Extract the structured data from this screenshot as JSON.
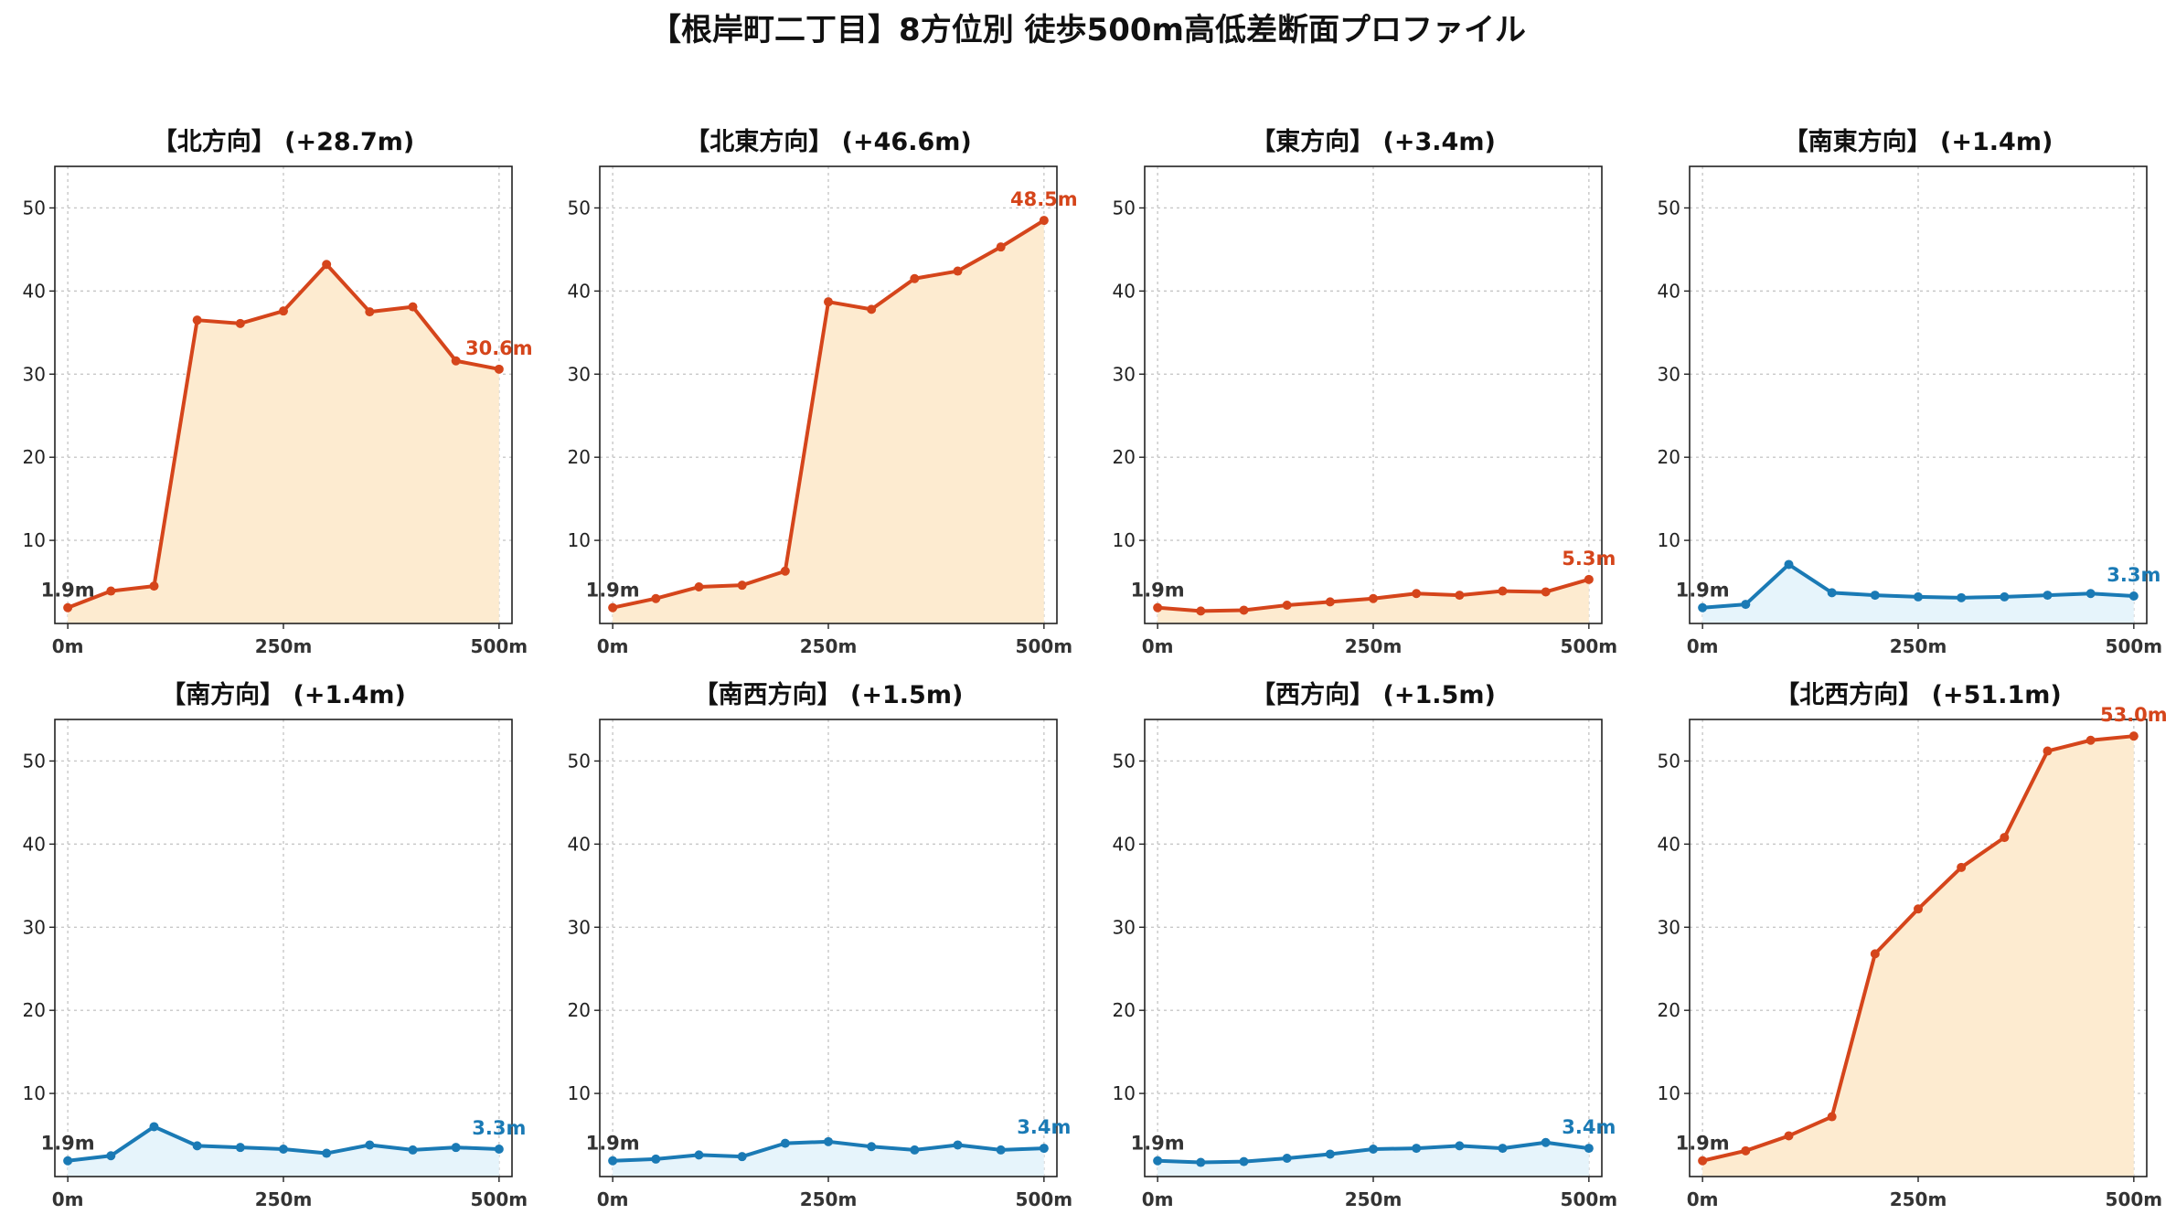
{
  "title": "【根岸町二丁目】8方位別 徒歩500m高低差断面プロファイル",
  "colors": {
    "up_line": "#d5451b",
    "up_fill": "#fdebd0",
    "flat_line": "#1a7ab5",
    "flat_fill": "#e6f4fb"
  },
  "chart_data": [
    {
      "type": "area",
      "title": "【北方向】 (+28.7m)",
      "trend": "up",
      "x": [
        0,
        50,
        100,
        150,
        200,
        250,
        300,
        350,
        400,
        450,
        500
      ],
      "values": [
        1.9,
        3.9,
        4.5,
        36.5,
        36.1,
        37.6,
        43.2,
        37.5,
        38.1,
        31.6,
        30.6
      ],
      "x_tick_labels": [
        "0m",
        "250m",
        "500m"
      ],
      "x_ticks": [
        0,
        250,
        500
      ],
      "y_ticks": [
        10,
        20,
        30,
        40,
        50
      ],
      "ylim": [
        0,
        55
      ],
      "xlim": [
        -15,
        515
      ],
      "start_label": "1.9m",
      "end_label": "30.6m",
      "grid": true
    },
    {
      "type": "area",
      "title": "【北東方向】 (+46.6m)",
      "trend": "up",
      "x": [
        0,
        50,
        100,
        150,
        200,
        250,
        300,
        350,
        400,
        450,
        500
      ],
      "values": [
        1.9,
        3.0,
        4.4,
        4.6,
        6.3,
        38.7,
        37.8,
        41.5,
        42.4,
        45.3,
        48.5
      ],
      "x_tick_labels": [
        "0m",
        "250m",
        "500m"
      ],
      "x_ticks": [
        0,
        250,
        500
      ],
      "y_ticks": [
        10,
        20,
        30,
        40,
        50
      ],
      "ylim": [
        0,
        55
      ],
      "xlim": [
        -15,
        515
      ],
      "start_label": "1.9m",
      "end_label": "48.5m",
      "grid": true
    },
    {
      "type": "area",
      "title": "【東方向】 (+3.4m)",
      "trend": "up",
      "x": [
        0,
        50,
        100,
        150,
        200,
        250,
        300,
        350,
        400,
        450,
        500
      ],
      "values": [
        1.9,
        1.5,
        1.6,
        2.2,
        2.6,
        3.0,
        3.6,
        3.4,
        3.9,
        3.8,
        5.3
      ],
      "x_tick_labels": [
        "0m",
        "250m",
        "500m"
      ],
      "x_ticks": [
        0,
        250,
        500
      ],
      "y_ticks": [
        10,
        20,
        30,
        40,
        50
      ],
      "ylim": [
        0,
        55
      ],
      "xlim": [
        -15,
        515
      ],
      "start_label": "1.9m",
      "end_label": "5.3m",
      "grid": true
    },
    {
      "type": "area",
      "title": "【南東方向】 (+1.4m)",
      "trend": "flat",
      "x": [
        0,
        50,
        100,
        150,
        200,
        250,
        300,
        350,
        400,
        450,
        500
      ],
      "values": [
        1.9,
        2.3,
        7.1,
        3.7,
        3.4,
        3.2,
        3.1,
        3.2,
        3.4,
        3.6,
        3.3
      ],
      "x_tick_labels": [
        "0m",
        "250m",
        "500m"
      ],
      "x_ticks": [
        0,
        250,
        500
      ],
      "y_ticks": [
        10,
        20,
        30,
        40,
        50
      ],
      "ylim": [
        0,
        55
      ],
      "xlim": [
        -15,
        515
      ],
      "start_label": "1.9m",
      "end_label": "3.3m",
      "grid": true
    },
    {
      "type": "area",
      "title": "【南方向】 (+1.4m)",
      "trend": "flat",
      "x": [
        0,
        50,
        100,
        150,
        200,
        250,
        300,
        350,
        400,
        450,
        500
      ],
      "values": [
        1.9,
        2.5,
        6.0,
        3.7,
        3.5,
        3.3,
        2.8,
        3.8,
        3.2,
        3.5,
        3.3
      ],
      "x_tick_labels": [
        "0m",
        "250m",
        "500m"
      ],
      "x_ticks": [
        0,
        250,
        500
      ],
      "y_ticks": [
        10,
        20,
        30,
        40,
        50
      ],
      "ylim": [
        0,
        55
      ],
      "xlim": [
        -15,
        515
      ],
      "start_label": "1.9m",
      "end_label": "3.3m",
      "grid": true
    },
    {
      "type": "area",
      "title": "【南西方向】 (+1.5m)",
      "trend": "flat",
      "x": [
        0,
        50,
        100,
        150,
        200,
        250,
        300,
        350,
        400,
        450,
        500
      ],
      "values": [
        1.9,
        2.1,
        2.6,
        2.4,
        4.0,
        4.2,
        3.6,
        3.2,
        3.8,
        3.2,
        3.4
      ],
      "x_tick_labels": [
        "0m",
        "250m",
        "500m"
      ],
      "x_ticks": [
        0,
        250,
        500
      ],
      "y_ticks": [
        10,
        20,
        30,
        40,
        50
      ],
      "ylim": [
        0,
        55
      ],
      "xlim": [
        -15,
        515
      ],
      "start_label": "1.9m",
      "end_label": "3.4m",
      "grid": true
    },
    {
      "type": "area",
      "title": "【西方向】 (+1.5m)",
      "trend": "flat",
      "x": [
        0,
        50,
        100,
        150,
        200,
        250,
        300,
        350,
        400,
        450,
        500
      ],
      "values": [
        1.9,
        1.7,
        1.8,
        2.2,
        2.7,
        3.3,
        3.4,
        3.7,
        3.4,
        4.1,
        3.4
      ],
      "x_tick_labels": [
        "0m",
        "250m",
        "500m"
      ],
      "x_ticks": [
        0,
        250,
        500
      ],
      "y_ticks": [
        10,
        20,
        30,
        40,
        50
      ],
      "ylim": [
        0,
        55
      ],
      "xlim": [
        -15,
        515
      ],
      "start_label": "1.9m",
      "end_label": "3.4m",
      "grid": true
    },
    {
      "type": "area",
      "title": "【北西方向】 (+51.1m)",
      "trend": "up",
      "x": [
        0,
        50,
        100,
        150,
        200,
        250,
        300,
        350,
        400,
        450,
        500
      ],
      "values": [
        1.9,
        3.1,
        4.9,
        7.2,
        26.8,
        32.2,
        37.2,
        40.8,
        51.2,
        52.5,
        53.0
      ],
      "x_tick_labels": [
        "0m",
        "250m",
        "500m"
      ],
      "x_ticks": [
        0,
        250,
        500
      ],
      "y_ticks": [
        10,
        20,
        30,
        40,
        50
      ],
      "ylim": [
        0,
        55
      ],
      "xlim": [
        -15,
        515
      ],
      "start_label": "1.9m",
      "end_label": "53.0m",
      "grid": true
    }
  ]
}
